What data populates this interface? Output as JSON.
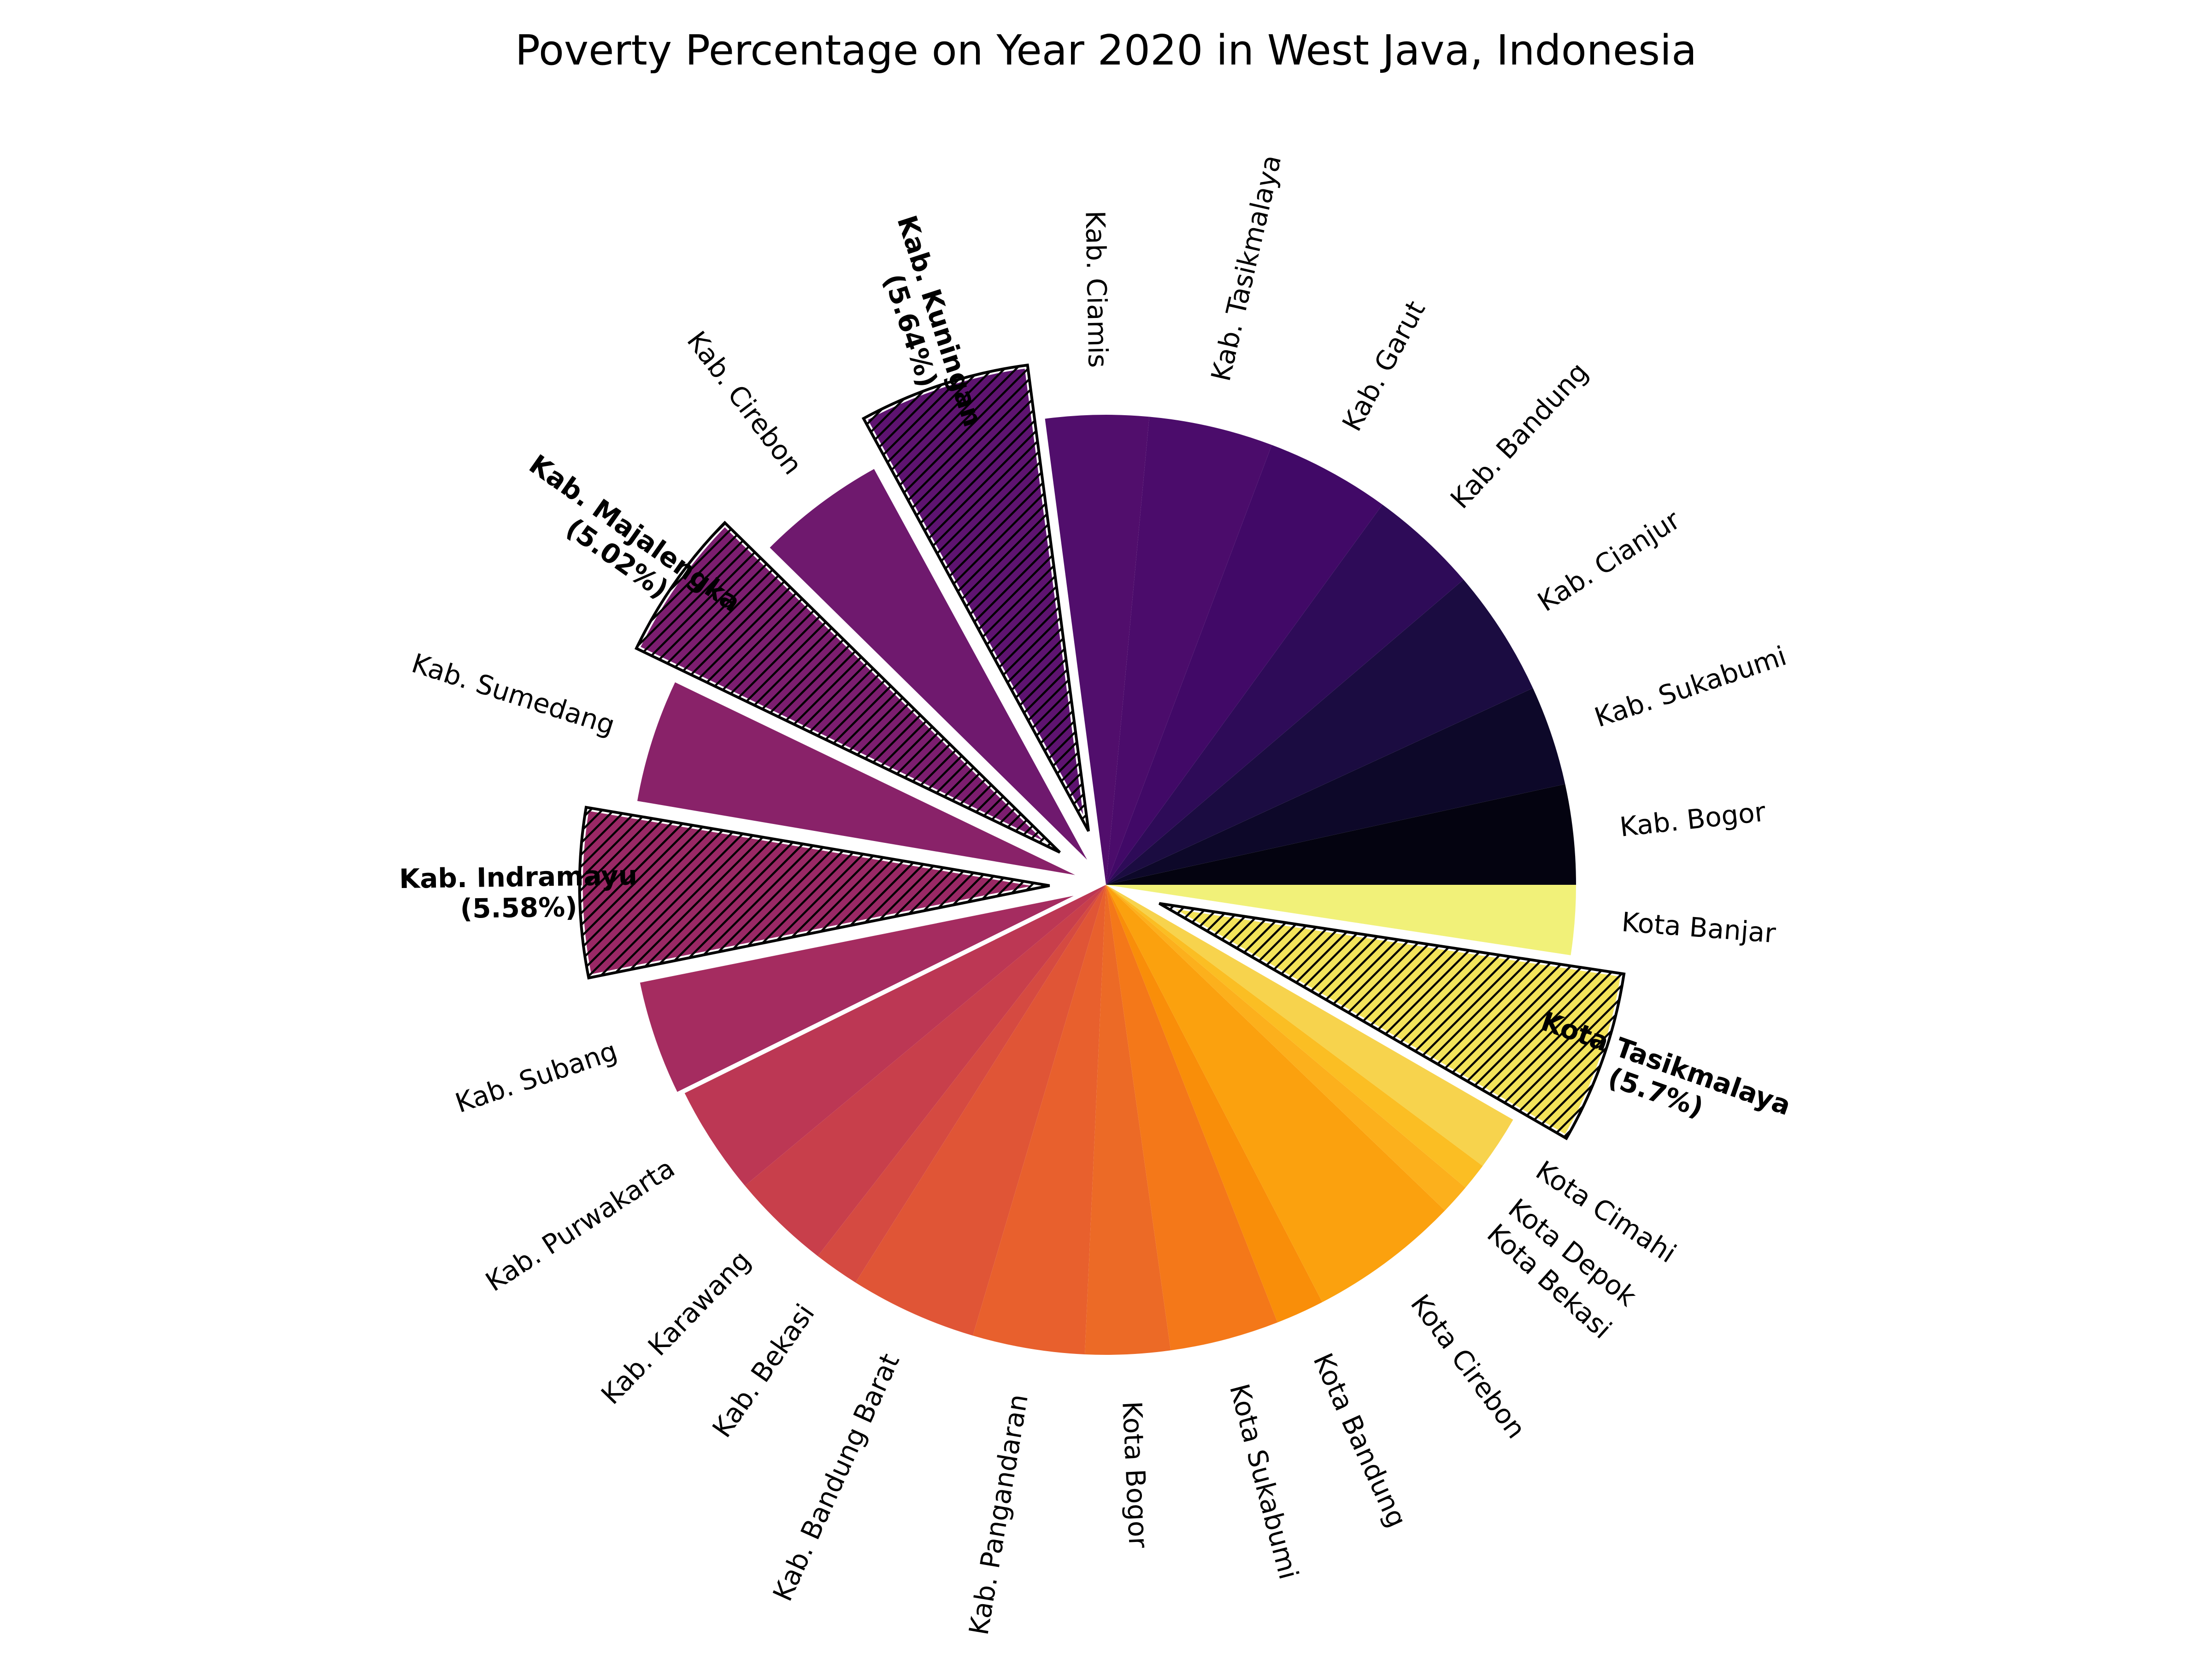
{
  "chart_data": {
    "type": "pie",
    "title": "Poverty Percentage on Year 2020 in West Java, Indonesia",
    "start_angle_deg": 0,
    "direction": "counterclockwise",
    "slices": [
      {
        "label": "Kab. Bogor",
        "value": 3.3,
        "color": "#040310"
      },
      {
        "label": "Kab. Sukabumi",
        "value": 3.3,
        "color": "#0d0829"
      },
      {
        "label": "Kab. Cianjur",
        "value": 4.2,
        "color": "#1b0c41"
      },
      {
        "label": "Kab. Bandung",
        "value": 3.6,
        "color": "#2e0b58"
      },
      {
        "label": "Kab. Garut",
        "value": 4.1,
        "color": "#410967"
      },
      {
        "label": "Kab. Tasikmalaya",
        "value": 4.1,
        "color": "#4b0c6b"
      },
      {
        "label": "Kab. Ciamis",
        "value": 3.4,
        "color": "#510e6c"
      },
      {
        "label": "Kab. Kuningan",
        "value": 5.64,
        "color": "#5e1370",
        "highlight": true,
        "percent_text": "(5.64%)"
      },
      {
        "label": "Kab. Cirebon",
        "value": 4.5,
        "color": "#6f196e",
        "explode": true
      },
      {
        "label": "Kab. Majalengka",
        "value": 5.02,
        "color": "#7c1d6f",
        "highlight": true,
        "percent_text": "(5.02%)"
      },
      {
        "label": "Kab. Sumedang",
        "value": 4.3,
        "color": "#892269",
        "explode": true
      },
      {
        "label": "Kab. Indramayu",
        "value": 5.58,
        "color": "#9a2865",
        "highlight": true,
        "percent_text": "(5.58%)"
      },
      {
        "label": "Kab. Subang",
        "value": 4.0,
        "color": "#a52c60",
        "explode": true
      },
      {
        "label": "Kab. Purwakarta",
        "value": 3.6,
        "color": "#bc3754"
      },
      {
        "label": "Kab. Karawang",
        "value": 3.3,
        "color": "#c83f4b"
      },
      {
        "label": "Kab. Bekasi",
        "value": 1.5,
        "color": "#d54a41"
      },
      {
        "label": "Kab. Bandung Barat",
        "value": 4.2,
        "color": "#e05536"
      },
      {
        "label": "Kab. Pangandaran",
        "value": 3.7,
        "color": "#e8602d"
      },
      {
        "label": "Kota Bogor",
        "value": 2.8,
        "color": "#ec6a26"
      },
      {
        "label": "Kota Sukabumi",
        "value": 3.6,
        "color": "#f47819"
      },
      {
        "label": "Kota Bandung",
        "value": 1.6,
        "color": "#f98e09"
      },
      {
        "label": "Kota Cirebon",
        "value": 5.0,
        "color": "#fba10e"
      },
      {
        "label": "Kota Bekasi",
        "value": 1.0,
        "color": "#fcb01c"
      },
      {
        "label": "Kota Depok",
        "value": 0.9,
        "color": "#fbbe23"
      },
      {
        "label": "Kota Cimahi",
        "value": 1.8,
        "color": "#f7d34d"
      },
      {
        "label": "Kota Tasikmalaya",
        "value": 5.7,
        "color": "#f3e35a",
        "highlight": true,
        "percent_text": "(5.7%)"
      },
      {
        "label": "Kota Banjar",
        "value": 2.3,
        "color": "#f1f179"
      }
    ]
  }
}
